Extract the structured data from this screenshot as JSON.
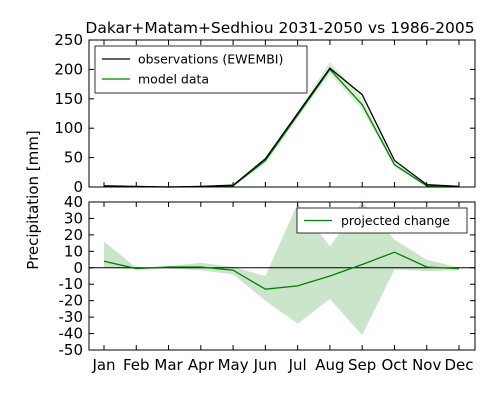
{
  "chart_data": [
    {
      "type": "line",
      "title": "Dakar+Matam+Sedhiou 2031-2050 vs 1986-2005",
      "ylabel": "Precipitation [mm]",
      "categories": [
        "Jan",
        "Feb",
        "Mar",
        "Apr",
        "May",
        "Jun",
        "Jul",
        "Aug",
        "Sep",
        "Oct",
        "Nov",
        "Dec"
      ],
      "ylim": [
        0,
        250
      ],
      "yticks": [
        0,
        50,
        100,
        150,
        200,
        250
      ],
      "legend_placement": "top-left",
      "series": [
        {
          "name": "observations (EWEMBI)",
          "color": "#000000",
          "values": [
            2,
            1,
            0,
            1,
            3,
            48,
            125,
            202,
            157,
            45,
            4,
            1
          ]
        },
        {
          "name": "model data",
          "color": "#008000",
          "values": [
            1,
            0.5,
            0,
            0.5,
            2,
            45,
            122,
            200,
            140,
            38,
            2,
            0.5
          ],
          "band_low": [
            0,
            0,
            0,
            0,
            1,
            40,
            118,
            192,
            132,
            33,
            1,
            0
          ],
          "band_high": [
            2,
            1,
            0.5,
            1,
            4,
            50,
            128,
            213,
            150,
            43,
            4,
            1
          ]
        }
      ]
    },
    {
      "type": "area",
      "categories": [
        "Jan",
        "Feb",
        "Mar",
        "Apr",
        "May",
        "Jun",
        "Jul",
        "Aug",
        "Sep",
        "Oct",
        "Nov",
        "Dec"
      ],
      "ylim": [
        -50,
        40
      ],
      "yticks": [
        -50,
        -40,
        -30,
        -20,
        -10,
        0,
        10,
        20,
        30,
        40
      ],
      "legend_placement": "top-right",
      "zero_line": true,
      "series": [
        {
          "name": "projected change",
          "color": "#008000",
          "band_color": "#b8dcb8",
          "values": [
            4,
            -0.5,
            0.5,
            0.5,
            -1.5,
            -13,
            -11,
            -5,
            2,
            9.5,
            0.5,
            -0.5
          ],
          "band_low": [
            0,
            -1,
            -0.5,
            -1.5,
            -4,
            -20,
            -34,
            -19,
            -41,
            -1,
            -2,
            -1.5
          ],
          "band_high": [
            16,
            0,
            1,
            3,
            0.5,
            -5,
            39,
            13,
            40,
            17,
            5,
            0
          ]
        }
      ]
    }
  ]
}
